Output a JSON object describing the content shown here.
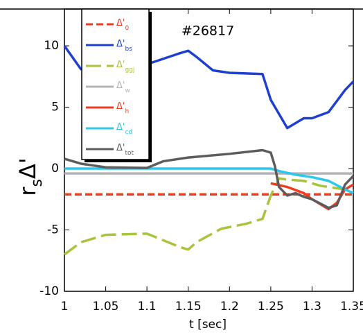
{
  "chart_data": {
    "type": "line",
    "title": "#26817",
    "xlabel": "t [sec]",
    "ylabel": {
      "text": "r",
      "subscript": "s",
      "suffix": "Δ'"
    },
    "xlim": [
      1,
      1.35
    ],
    "xticks": [
      1,
      1.05,
      1.1,
      1.15,
      1.2,
      1.25,
      1.3,
      1.35
    ],
    "ylim": [
      -10,
      13
    ],
    "yticks": [
      -10,
      -5,
      0,
      5,
      10
    ],
    "series": [
      {
        "name": "Δ'",
        "subscript": "0",
        "color": "#f03c1e",
        "dash": "dashed",
        "x": [
          1,
          1.35
        ],
        "values": [
          -2.1,
          -2.1
        ]
      },
      {
        "name": "Δ'",
        "subscript": "bs",
        "color": "#1f3fcf",
        "dash": "solid",
        "x": [
          1,
          1.02,
          1.05,
          1.1,
          1.14,
          1.15,
          1.16,
          1.18,
          1.2,
          1.24,
          1.25,
          1.27,
          1.29,
          1.3,
          1.32,
          1.34,
          1.35
        ],
        "values": [
          10,
          8.1,
          7.8,
          8.5,
          9.4,
          9.6,
          9.1,
          8,
          7.8,
          7.7,
          5.6,
          3.3,
          4.1,
          4.1,
          4.6,
          6.4,
          7.1
        ]
      },
      {
        "name": "Δ'",
        "subscript": "ggj",
        "color": "#a8c43c",
        "dash": "long-dashed",
        "x": [
          1,
          1.02,
          1.05,
          1.1,
          1.14,
          1.15,
          1.16,
          1.19,
          1.22,
          1.24,
          1.25,
          1.26,
          1.27,
          1.29,
          1.31,
          1.33,
          1.35
        ],
        "values": [
          -7,
          -6,
          -5.4,
          -5.3,
          -6.4,
          -6.6,
          -6,
          -4.9,
          -4.5,
          -4.1,
          -2.2,
          -0.8,
          -0.9,
          -1,
          -1.4,
          -1.6,
          -1.8
        ]
      },
      {
        "name": "Δ'",
        "subscript": "w",
        "color": "#b4b4b4",
        "dash": "solid",
        "x": [
          1,
          1.35
        ],
        "values": [
          -0.4,
          -0.4
        ]
      },
      {
        "name": "Δ'",
        "subscript": "h",
        "color": "#f03c1e",
        "dash": "solid",
        "x": [
          1.25,
          1.27,
          1.29,
          1.3,
          1.31,
          1.32,
          1.33,
          1.34,
          1.35
        ],
        "values": [
          -1.2,
          -1.5,
          -2,
          -2.5,
          -2.9,
          -3.3,
          -2.8,
          -1.7,
          -1.3
        ]
      },
      {
        "name": "Δ'",
        "subscript": "cd",
        "color": "#2cc8ec",
        "dash": "solid",
        "x": [
          1,
          1.25,
          1.26,
          1.28,
          1.3,
          1.32,
          1.34,
          1.35
        ],
        "values": [
          0,
          0,
          -0.2,
          -0.5,
          -0.7,
          -1,
          -1.7,
          -2
        ]
      },
      {
        "name": "Δ'",
        "subscript": "tot",
        "color": "#5c5c5c",
        "dash": "solid",
        "x": [
          1,
          1.02,
          1.05,
          1.1,
          1.12,
          1.15,
          1.2,
          1.24,
          1.25,
          1.255,
          1.26,
          1.27,
          1.28,
          1.29,
          1.3,
          1.32,
          1.33,
          1.34,
          1.35
        ],
        "values": [
          0.8,
          0.4,
          0.1,
          0.05,
          0.6,
          0.9,
          1.2,
          1.5,
          1.3,
          0.2,
          -1.5,
          -2.2,
          -2,
          -2.3,
          -2.5,
          -3.2,
          -3,
          -1.3,
          -0.6
        ]
      }
    ]
  }
}
